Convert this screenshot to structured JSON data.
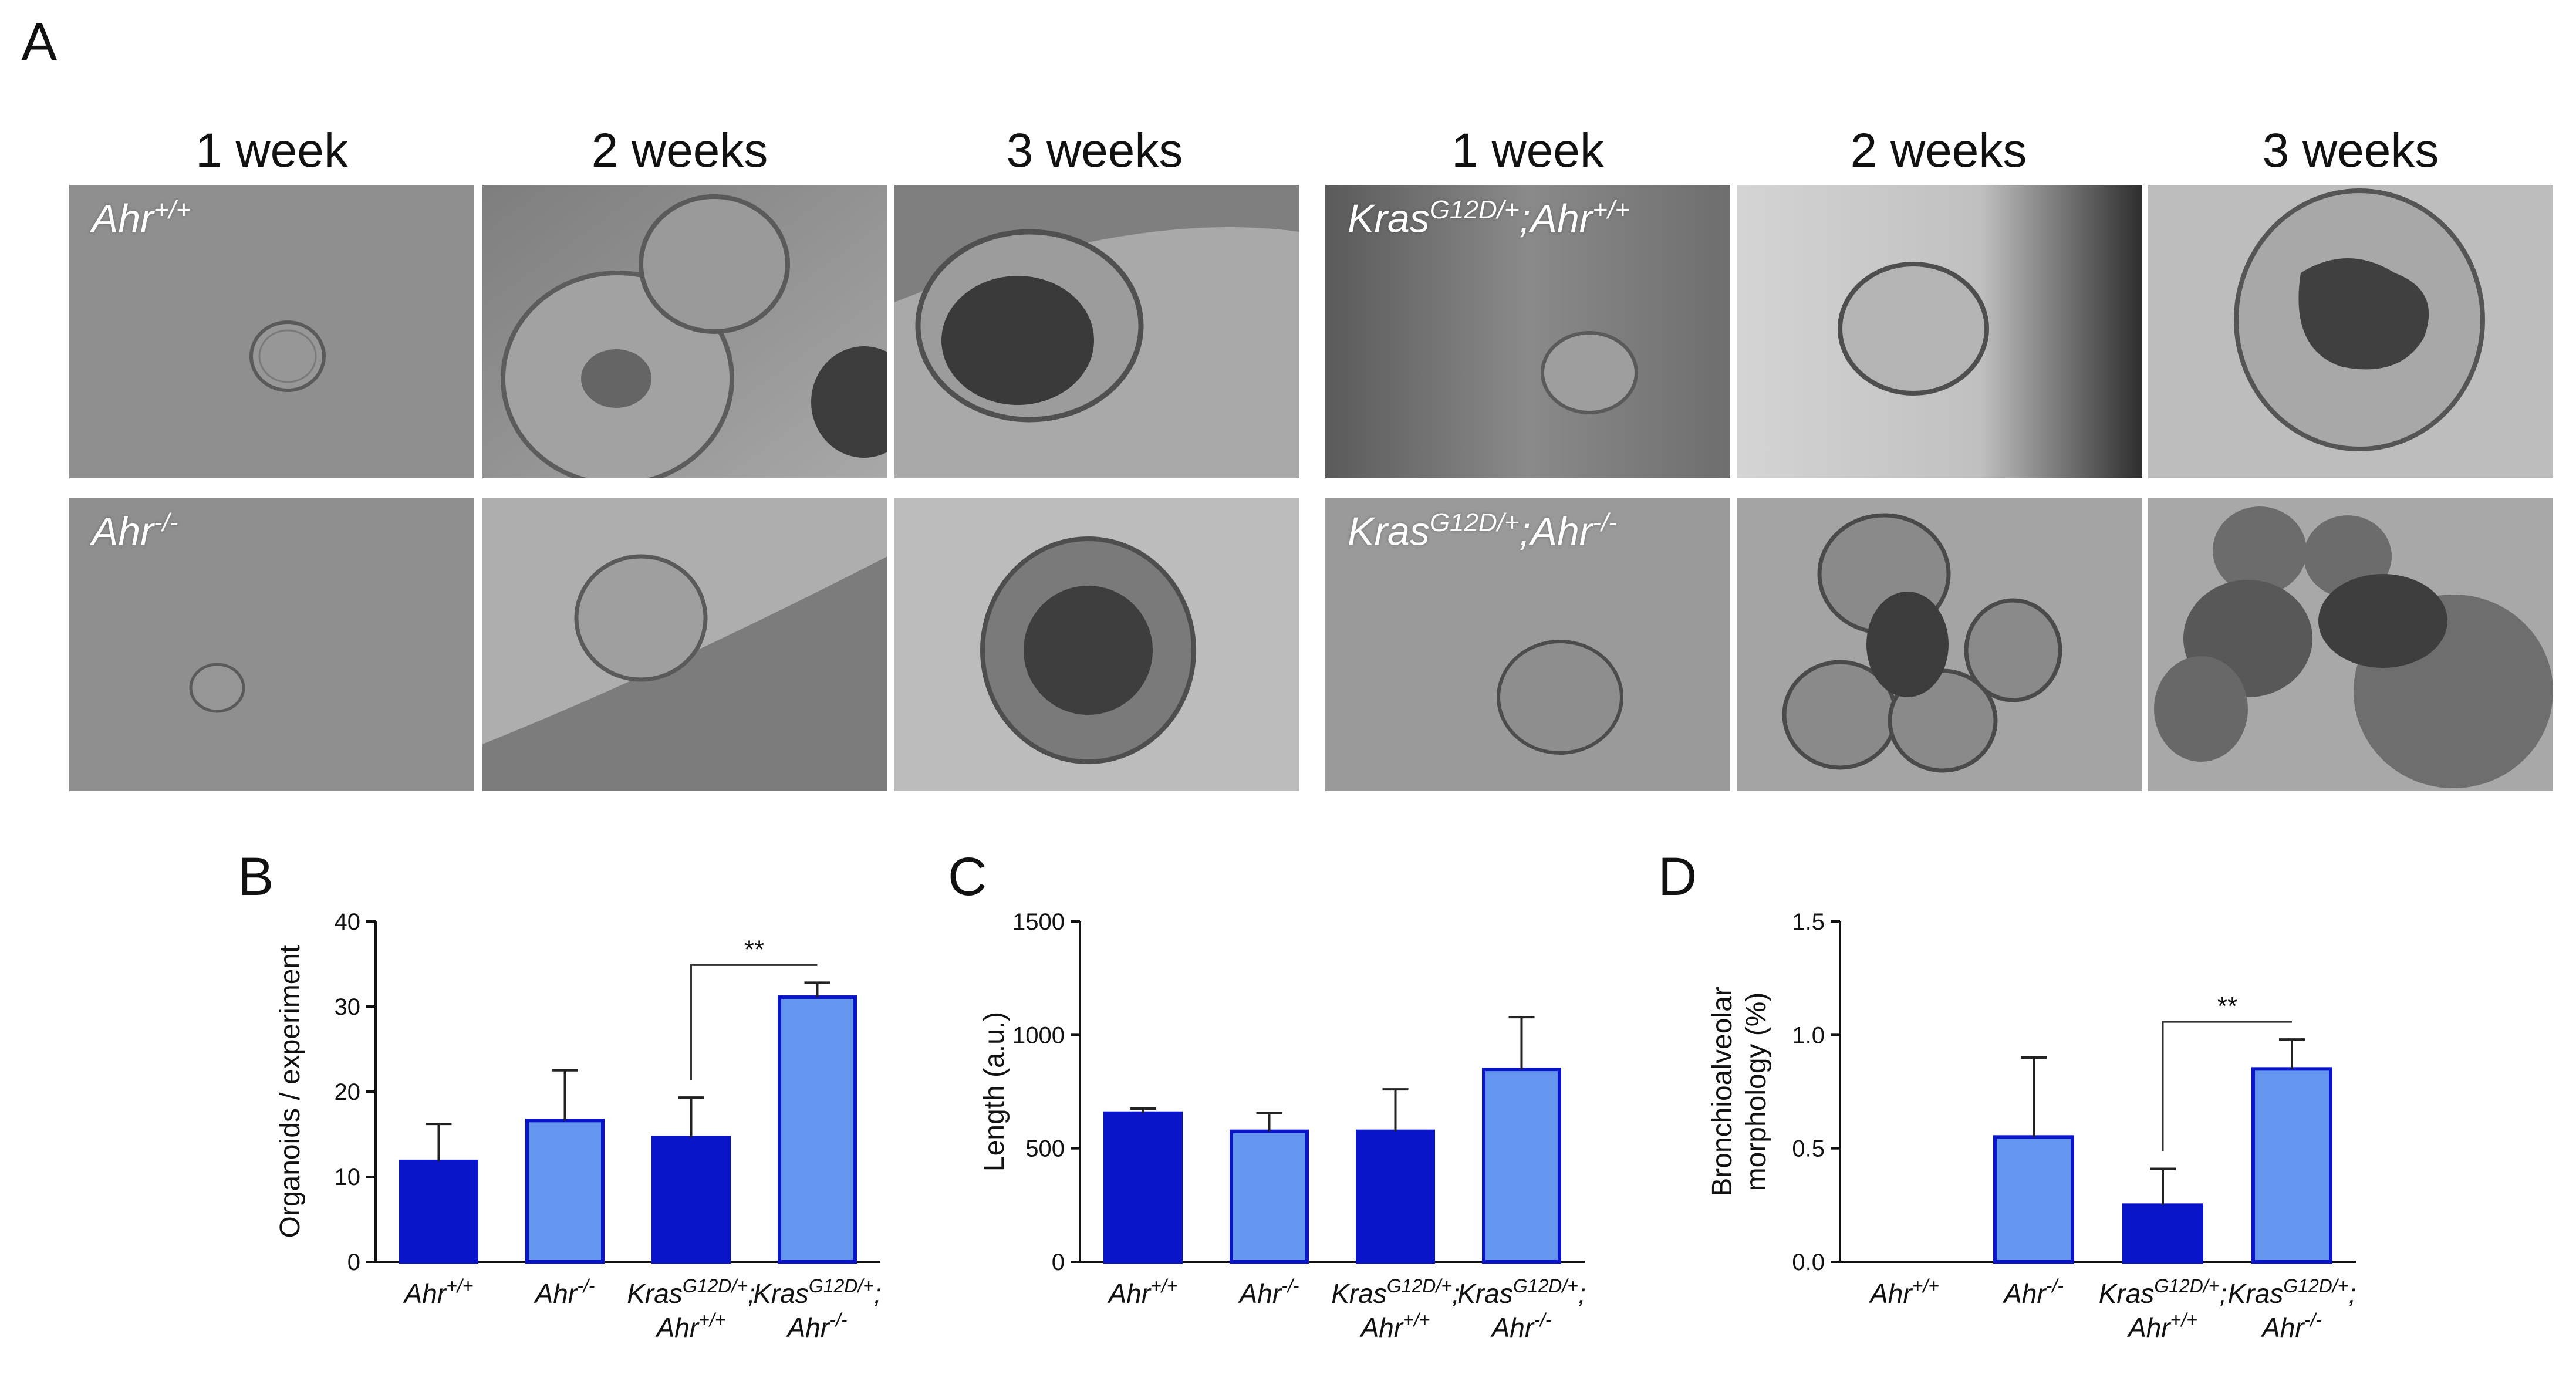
{
  "figure": {
    "panel_a_letter": "A",
    "week_headers_left": [
      "1 week",
      "2 weeks",
      "3 weeks"
    ],
    "week_headers_right": [
      "1 week",
      "2 weeks",
      "3 weeks"
    ],
    "genotype_labels": [
      {
        "main": "Ahr",
        "sup": "+/+"
      },
      {
        "main": "Ahr",
        "sup": "-/-"
      },
      {
        "main": "Kras",
        "sup": "G12D/+",
        "main2": ";Ahr",
        "sup2": "+/+"
      },
      {
        "main": "Kras",
        "sup": "G12D/+",
        "main2": ";Ahr",
        "sup2": "-/-"
      }
    ],
    "colors": {
      "dark_bar": "#0a14c8",
      "light_bar": "#6496f0",
      "bar_edge": "#0a14c8",
      "axis": "#111111"
    }
  },
  "chart_data": [
    {
      "panel": "B",
      "type": "bar",
      "ylabel": "Organoids / experiment",
      "ylim": [
        0,
        40
      ],
      "yticks": [
        "0",
        "10",
        "20",
        "30",
        "40"
      ],
      "categories": [
        {
          "line1": "Ahr",
          "sup1": "+/+",
          "line2": "",
          "sup2": ""
        },
        {
          "line1": "Ahr",
          "sup1": "-/-",
          "line2": "",
          "sup2": ""
        },
        {
          "line1": "Kras",
          "sup1": "G12D/+",
          "tail1": ";",
          "line2": "Ahr",
          "sup2": "+/+"
        },
        {
          "line1": "Kras",
          "sup1": "G12D/+",
          "tail1": ";",
          "line2": "Ahr",
          "sup2": "-/-"
        }
      ],
      "values": [
        11.8,
        16.6,
        14.6,
        31.1
      ],
      "errors": [
        4.4,
        5.9,
        4.7,
        1.7
      ],
      "bar_colors": [
        "dark",
        "light",
        "dark",
        "light"
      ],
      "significance": {
        "from": 2,
        "to": 3,
        "label": "**"
      }
    },
    {
      "panel": "C",
      "type": "bar",
      "ylabel": "Length (a.u.)",
      "ylim": [
        0,
        1500
      ],
      "yticks": [
        "0",
        "500",
        "1000",
        "1500"
      ],
      "categories": [
        {
          "line1": "Ahr",
          "sup1": "+/+",
          "line2": "",
          "sup2": ""
        },
        {
          "line1": "Ahr",
          "sup1": "-/-",
          "line2": "",
          "sup2": ""
        },
        {
          "line1": "Kras",
          "sup1": "G12D/+",
          "tail1": ";",
          "line2": "Ahr",
          "sup2": "+/+"
        },
        {
          "line1": "Kras",
          "sup1": "G12D/+",
          "tail1": ";",
          "line2": "Ahr",
          "sup2": "-/-"
        }
      ],
      "values": [
        655,
        575,
        575,
        848
      ],
      "errors": [
        20,
        80,
        185,
        230
      ],
      "bar_colors": [
        "dark",
        "light",
        "dark",
        "light"
      ]
    },
    {
      "panel": "D",
      "type": "bar",
      "ylabel": "Bronchioalveolar morphology (%)",
      "ylabel_lines": [
        "Bronchioalveolar",
        "morphology (%)"
      ],
      "ylim": [
        0,
        1.5
      ],
      "yticks": [
        "0.0",
        "0.5",
        "1.0",
        "1.5"
      ],
      "categories": [
        {
          "line1": "Ahr",
          "sup1": "+/+",
          "line2": "",
          "sup2": ""
        },
        {
          "line1": "Ahr",
          "sup1": "-/-",
          "line2": "",
          "sup2": ""
        },
        {
          "line1": "Kras",
          "sup1": "G12D/+",
          "tail1": ";",
          "line2": "Ahr",
          "sup2": "+/+"
        },
        {
          "line1": "Kras",
          "sup1": "G12D/+",
          "tail1": ";",
          "line2": "Ahr",
          "sup2": "-/-"
        }
      ],
      "values": [
        0,
        0.55,
        0.25,
        0.85
      ],
      "errors": [
        0,
        0.35,
        0.16,
        0.13
      ],
      "bar_colors": [
        "dark",
        "light",
        "dark",
        "light"
      ],
      "significance": {
        "from": 2,
        "to": 3,
        "label": "**"
      }
    }
  ]
}
